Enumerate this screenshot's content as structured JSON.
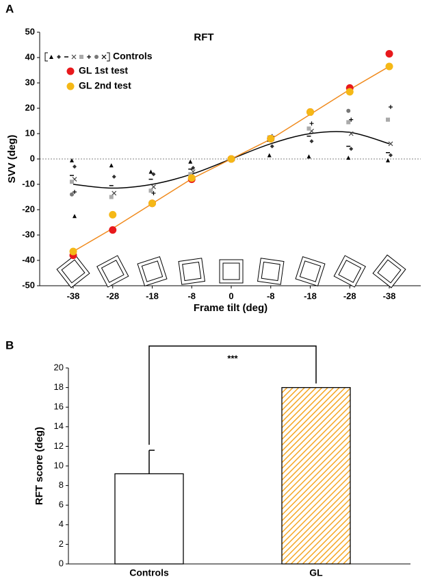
{
  "chart_data": [
    {
      "type": "scatter",
      "panel": "A",
      "title": "RFT",
      "categories": [
        "-38",
        "-28",
        "-18",
        "-8",
        "0",
        "-8",
        "-18",
        "-28",
        "-38"
      ],
      "xlabel": "Frame tilt (deg)",
      "ylabel": "SVV (deg)",
      "ylim": [
        -50,
        50
      ],
      "yticks": [
        -50,
        -40,
        -30,
        -20,
        -10,
        0,
        10,
        20,
        30,
        40,
        50
      ],
      "zero_line": true,
      "series": [
        {
          "name": "Controls",
          "color": "#555555",
          "values": [
            [
              -0.5,
              -3,
              -6.5,
              -8,
              -9,
              -13,
              -14,
              -22.5
            ],
            [
              -2.5,
              -7,
              -10.5,
              -13.5,
              -15,
              -22
            ],
            [
              -5,
              -6,
              -8,
              -11,
              -12.5,
              -13.5
            ],
            [
              -1,
              -3.5,
              -4,
              -5,
              -6,
              -7
            ],
            [
              0,
              0,
              0,
              0,
              0
            ],
            [
              1.5,
              5,
              7,
              8,
              8.5,
              9
            ],
            [
              1,
              7,
              9,
              11,
              12,
              14
            ],
            [
              0.5,
              4,
              5,
              10,
              14.5,
              15.5,
              19
            ],
            [
              -0.5,
              1.5,
              2.5,
              6,
              15.5,
              20.5
            ]
          ]
        },
        {
          "name": "GL 1st test",
          "color": "#e8191c",
          "values": [
            -38,
            -28,
            -17.5,
            -8,
            0,
            8,
            18.5,
            28,
            41.5
          ]
        },
        {
          "name": "GL 2nd test",
          "color": "#f5b816",
          "values": [
            -36.5,
            -22,
            -17.5,
            -7.5,
            0,
            8,
            18.5,
            26.5,
            36.5
          ]
        },
        {
          "color": "#000000",
          "smooth": true,
          "values": [
            -10,
            -11.5,
            -10,
            -6,
            0,
            6,
            10,
            10.5,
            6
          ]
        },
        {
          "color": "#f08a1c",
          "values": [
            -36.5,
            -27.4,
            -17.6,
            -7.8,
            0,
            7.8,
            17.6,
            27.4,
            36.5
          ]
        }
      ]
    },
    {
      "type": "bar",
      "panel": "B",
      "categories": [
        "Controls",
        "GL"
      ],
      "values": [
        9.2,
        18
      ],
      "errors": [
        2.4,
        null
      ],
      "colors": [
        "#ffffff",
        "#f5a623"
      ],
      "hatch": [
        false,
        true
      ],
      "ylim": [
        0,
        20
      ],
      "yticks": [
        0,
        2,
        4,
        6,
        8,
        10,
        12,
        14,
        16,
        18,
        20
      ],
      "ylabel": "RFT score (deg)",
      "annotation": "***"
    }
  ]
}
